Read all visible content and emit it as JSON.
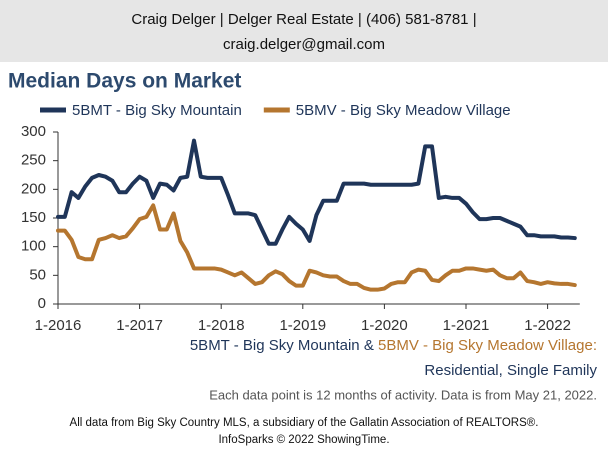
{
  "chart_data": {
    "type": "line",
    "header": [
      "Craig Delger | Delger Real Estate | (406) 581-8781 |",
      "craig.delger@gmail.com"
    ],
    "title": "Median Days on Market",
    "subtitle": [
      "5BMT - Big Sky Mountain",
      "&",
      "5BMV - Big Sky Meadow Village:"
    ],
    "subtitle_line2": "Residential, Single Family",
    "note": "Each data point is 12 months of activity. Data is from May 21, 2022.",
    "footer": [
      "All data from Big Sky Country MLS, a subsidiary of the Gallatin Association of REALTORS®.",
      "InfoSparks © 2022 ShowingTime."
    ],
    "categories": [
      "1-2016",
      null,
      null,
      null,
      null,
      null,
      null,
      null,
      null,
      null,
      null,
      null,
      "1-2017",
      null,
      null,
      null,
      null,
      null,
      null,
      null,
      null,
      null,
      null,
      null,
      "1-2018",
      null,
      null,
      null,
      null,
      null,
      null,
      null,
      null,
      null,
      null,
      null,
      "1-2019",
      null,
      null,
      null,
      null,
      null,
      null,
      null,
      null,
      null,
      null,
      null,
      "1-2020",
      null,
      null,
      null,
      null,
      null,
      null,
      null,
      null,
      null,
      null,
      null,
      "1-2021",
      null,
      null,
      null,
      null,
      null,
      null,
      null,
      null,
      null,
      null,
      null,
      "1-2022",
      null,
      null,
      null,
      null
    ],
    "series": [
      {
        "name": "5BMT - Big Sky Mountain",
        "color": "#1f3559",
        "values": [
          152,
          152,
          195,
          185,
          205,
          220,
          225,
          222,
          215,
          195,
          195,
          210,
          222,
          215,
          185,
          210,
          208,
          198,
          220,
          222,
          285,
          222,
          220,
          220,
          220,
          190,
          158,
          158,
          158,
          155,
          130,
          105,
          105,
          130,
          152,
          140,
          130,
          110,
          155,
          180,
          180,
          180,
          210,
          210,
          210,
          210,
          208,
          208,
          208,
          208,
          208,
          208,
          208,
          210,
          275,
          275,
          185,
          187,
          185,
          185,
          175,
          160,
          148,
          148,
          150,
          150,
          145,
          140,
          135,
          120,
          120,
          118,
          118,
          118,
          116,
          116,
          115
        ]
      },
      {
        "name": "5BMV - Big Sky Meadow Village",
        "color": "#b5762f",
        "values": [
          128,
          128,
          112,
          82,
          78,
          78,
          112,
          115,
          120,
          115,
          118,
          132,
          148,
          152,
          172,
          130,
          130,
          158,
          110,
          90,
          62,
          62,
          62,
          62,
          60,
          55,
          50,
          55,
          45,
          35,
          38,
          50,
          57,
          52,
          40,
          32,
          32,
          58,
          55,
          50,
          48,
          48,
          40,
          35,
          35,
          28,
          25,
          25,
          27,
          35,
          38,
          38,
          55,
          60,
          58,
          42,
          40,
          50,
          58,
          58,
          62,
          62,
          60,
          58,
          60,
          50,
          45,
          45,
          55,
          40,
          38,
          35,
          38,
          36,
          35,
          35,
          33
        ]
      }
    ],
    "ylim": [
      0,
      300
    ],
    "yticks": [
      0,
      50,
      100,
      150,
      200,
      250,
      300
    ],
    "grid": false
  }
}
